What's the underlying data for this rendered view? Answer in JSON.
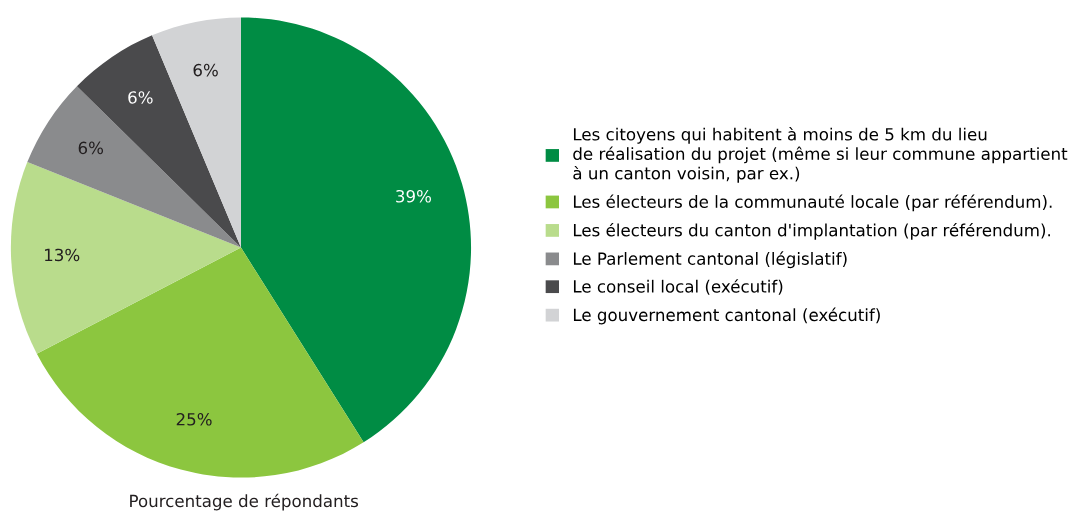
{
  "chart_data": {
    "type": "pie",
    "xlabel": "Pourcentage de répondants",
    "categories": [
      "Les citoyens qui habitent à moins de 5 km du lieu\nde réalisation du projet (même si leur commune appartient\nà un canton voisin, par ex.)",
      "Les électeurs de la communauté locale (par référendum).",
      "Les électeurs du canton d'implantation (par référendum).",
      "Le Parlement cantonal (législatif)",
      "Le conseil local (exécutif)",
      "Le gouvernement cantonal (exécutif)"
    ],
    "values": [
      39,
      25,
      13,
      6,
      6,
      6
    ],
    "value_labels": [
      "39%",
      "25%",
      "13%",
      "6%",
      "6%",
      "6%"
    ],
    "colors": [
      "#008c44",
      "#8cc63f",
      "#b9dc8c",
      "#8a8b8d",
      "#4a4a4c",
      "#d2d3d5"
    ],
    "legend": "right"
  }
}
